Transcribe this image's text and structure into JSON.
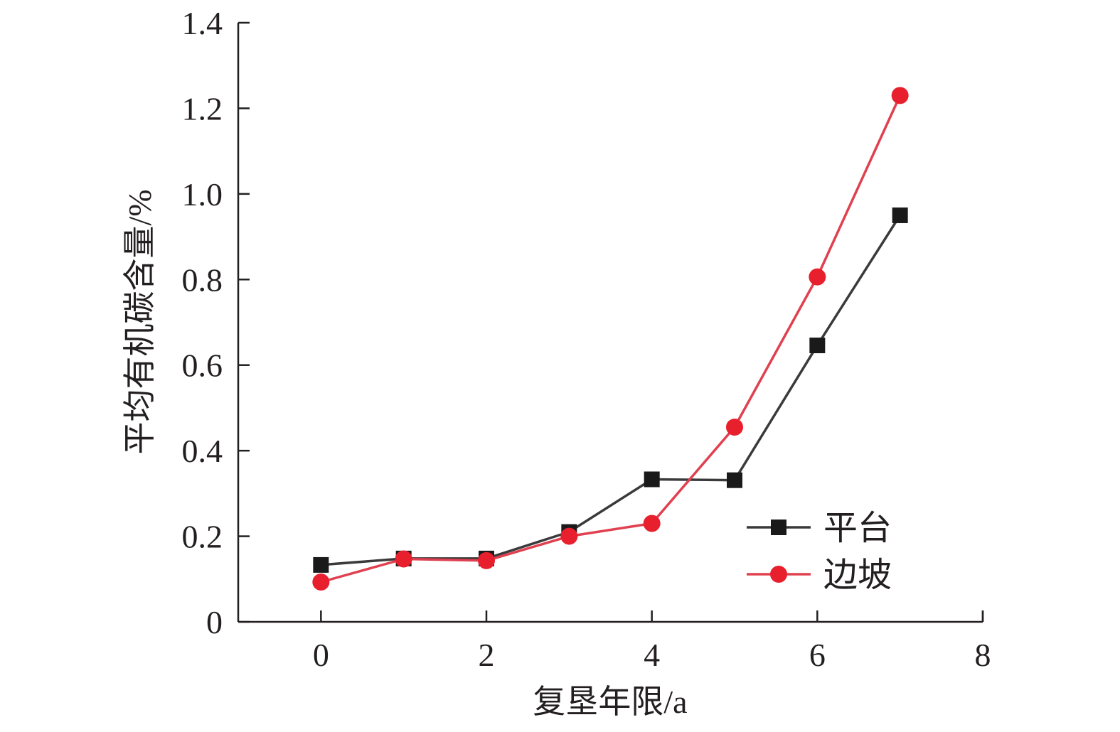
{
  "chart_data": {
    "type": "line",
    "title": "",
    "xlabel": "复垦年限/a",
    "ylabel": "平均有机碳含量/%",
    "xlim": [
      -1,
      8
    ],
    "ylim": [
      0,
      1.4
    ],
    "x_ticks": [
      0,
      2,
      4,
      6,
      8
    ],
    "x_tick_labels": [
      "0",
      "2",
      "4",
      "6",
      "8"
    ],
    "y_ticks": [
      0,
      0.2,
      0.4,
      0.6,
      0.8,
      1.0,
      1.2,
      1.4
    ],
    "y_tick_labels": [
      "0",
      "0.2",
      "0.4",
      "0.6",
      "0.8",
      "1.0",
      "1.2",
      "1.4"
    ],
    "grid": false,
    "legend_position": "bottom-right",
    "x": [
      0,
      1,
      2,
      3,
      4,
      5,
      6,
      7
    ],
    "series": [
      {
        "name": "平台",
        "marker": "square",
        "color": "#3a3a3c",
        "marker_color": "#1a1a1a",
        "values": [
          0.133,
          0.148,
          0.148,
          0.21,
          0.333,
          0.331,
          0.646,
          0.95
        ]
      },
      {
        "name": "边坡",
        "marker": "circle",
        "color": "#e0404f",
        "marker_color": "#e8202e",
        "values": [
          0.093,
          0.147,
          0.143,
          0.2,
          0.23,
          0.455,
          0.806,
          1.23
        ]
      }
    ]
  }
}
